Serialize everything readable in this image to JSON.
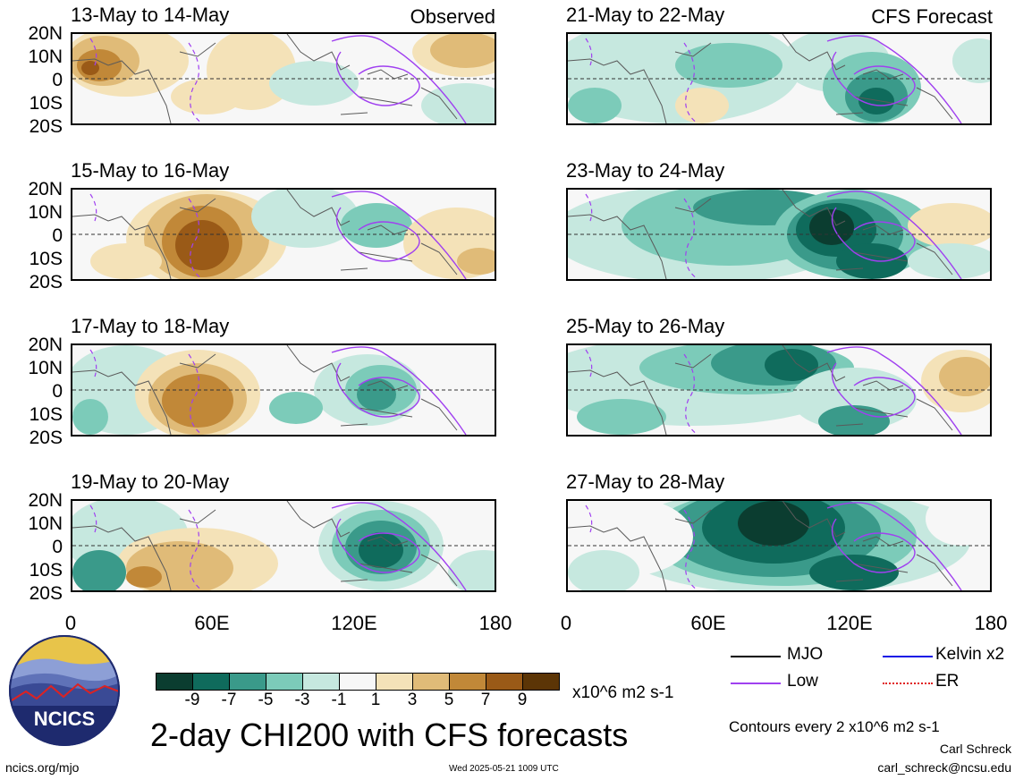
{
  "panels": {
    "left": [
      {
        "title": "13-May to 14-May",
        "tag": "Observed"
      },
      {
        "title": "15-May to 16-May",
        "tag": ""
      },
      {
        "title": "17-May to 18-May",
        "tag": ""
      },
      {
        "title": "19-May to 20-May",
        "tag": ""
      }
    ],
    "right": [
      {
        "title": "21-May to 22-May",
        "tag": "CFS Forecast"
      },
      {
        "title": "23-May to 24-May",
        "tag": ""
      },
      {
        "title": "25-May to 26-May",
        "tag": ""
      },
      {
        "title": "27-May to 28-May",
        "tag": ""
      }
    ]
  },
  "axes": {
    "lat_labels": [
      "20N",
      "10N",
      "0",
      "10S",
      "20S"
    ],
    "lon_labels": [
      "0",
      "60E",
      "120E",
      "180"
    ]
  },
  "colorbar": {
    "labels": [
      "-9",
      "-7",
      "-5",
      "-3",
      "-1",
      "1",
      "3",
      "5",
      "7",
      "9"
    ],
    "colors": [
      "#0b3d30",
      "#0f6b5c",
      "#3a9a8a",
      "#7ccbb9",
      "#c6e8df",
      "#f7f7f7",
      "#f4e2b8",
      "#e0bb78",
      "#c18838",
      "#9a5a17",
      "#5c3506"
    ],
    "units": "x10^6 m2 s-1"
  },
  "title": "2-day CHI200 with CFS forecasts",
  "legend": {
    "items": [
      {
        "label": "MJO",
        "color": "#000000"
      },
      {
        "label": "Kelvin x2",
        "color": "#1414e6"
      },
      {
        "label": "Low",
        "color": "#a040f0"
      },
      {
        "label": "ER",
        "color": "#e02020"
      }
    ],
    "contours_note": "Contours every 2 x10^6 m2 s-1"
  },
  "logo": {
    "text": "NCICS"
  },
  "footer": {
    "url": "ncics.org/mjo",
    "timestamp": "Wed 2025-05-21 1009 UTC",
    "author": "Carl Schreck",
    "email": "carl_schreck@ncsu.edu"
  }
}
